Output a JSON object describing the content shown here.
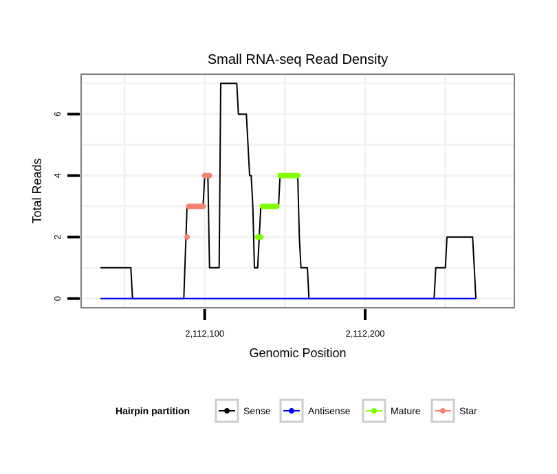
{
  "chart_data": {
    "type": "line",
    "title": "Small RNA-seq Read Density",
    "xlabel": "Genomic Position",
    "ylabel": "Total Reads",
    "xlim": [
      2112023,
      2112293
    ],
    "ylim": [
      -0.3,
      7.3
    ],
    "x_ticks": [
      2112100,
      2112200
    ],
    "x_tick_labels": [
      "2,112,100",
      "2,112,200"
    ],
    "y_ticks": [
      0,
      2,
      4,
      6
    ],
    "y_tick_labels": [
      "0",
      "2",
      "4",
      "6"
    ],
    "grid": true,
    "legend": {
      "title": "Hairpin partition",
      "position": "bottom",
      "entries": [
        "Sense",
        "Antisense",
        "Mature",
        "Star"
      ]
    },
    "series": [
      {
        "name": "Sense",
        "color": "#000000",
        "style": "line",
        "points": [
          [
            2112035,
            1
          ],
          [
            2112054,
            1
          ],
          [
            2112055,
            0
          ],
          [
            2112087,
            0
          ],
          [
            2112089,
            3
          ],
          [
            2112099,
            3
          ],
          [
            2112100,
            4
          ],
          [
            2112102,
            4
          ],
          [
            2112103,
            1
          ],
          [
            2112109,
            1
          ],
          [
            2112110,
            7
          ],
          [
            2112120,
            7
          ],
          [
            2112121,
            6
          ],
          [
            2112126,
            6
          ],
          [
            2112128,
            4
          ],
          [
            2112129,
            4
          ],
          [
            2112130,
            3
          ],
          [
            2112131,
            1
          ],
          [
            2112133,
            1
          ],
          [
            2112134,
            2
          ],
          [
            2112135,
            3
          ],
          [
            2112138,
            3
          ],
          [
            2112146,
            3
          ],
          [
            2112147,
            4
          ],
          [
            2112158,
            4
          ],
          [
            2112159,
            2
          ],
          [
            2112160,
            1
          ],
          [
            2112164,
            1
          ],
          [
            2112165,
            0
          ],
          [
            2112243,
            0
          ],
          [
            2112244,
            1
          ],
          [
            2112250,
            1
          ],
          [
            2112251,
            2
          ],
          [
            2112267,
            2
          ],
          [
            2112268,
            1
          ],
          [
            2112269,
            0
          ]
        ]
      },
      {
        "name": "Antisense",
        "color": "#0000ff",
        "style": "line",
        "points": [
          [
            2112035,
            0
          ],
          [
            2112269,
            0
          ]
        ]
      },
      {
        "name": "Mature",
        "color": "#7fff00",
        "style": "points",
        "points": [
          [
            2112133,
            2
          ],
          [
            2112134,
            2
          ],
          [
            2112135,
            2
          ],
          [
            2112136,
            3
          ],
          [
            2112137,
            3
          ],
          [
            2112138,
            3
          ],
          [
            2112139,
            3
          ],
          [
            2112140,
            3
          ],
          [
            2112141,
            3
          ],
          [
            2112142,
            3
          ],
          [
            2112143,
            3
          ],
          [
            2112144,
            3
          ],
          [
            2112145,
            3
          ],
          [
            2112147,
            4
          ],
          [
            2112148,
            4
          ],
          [
            2112149,
            4
          ],
          [
            2112150,
            4
          ],
          [
            2112151,
            4
          ],
          [
            2112152,
            4
          ],
          [
            2112153,
            4
          ],
          [
            2112154,
            4
          ],
          [
            2112155,
            4
          ],
          [
            2112156,
            4
          ],
          [
            2112157,
            4
          ],
          [
            2112158,
            4
          ]
        ]
      },
      {
        "name": "Star",
        "color": "#fa8072",
        "style": "points",
        "points": [
          [
            2112089,
            2
          ],
          [
            2112090,
            3
          ],
          [
            2112091,
            3
          ],
          [
            2112092,
            3
          ],
          [
            2112093,
            3
          ],
          [
            2112094,
            3
          ],
          [
            2112095,
            3
          ],
          [
            2112096,
            3
          ],
          [
            2112097,
            3
          ],
          [
            2112098,
            3
          ],
          [
            2112099,
            3
          ],
          [
            2112100,
            4
          ],
          [
            2112101,
            4
          ],
          [
            2112102,
            4
          ],
          [
            2112103,
            4
          ]
        ]
      }
    ]
  }
}
